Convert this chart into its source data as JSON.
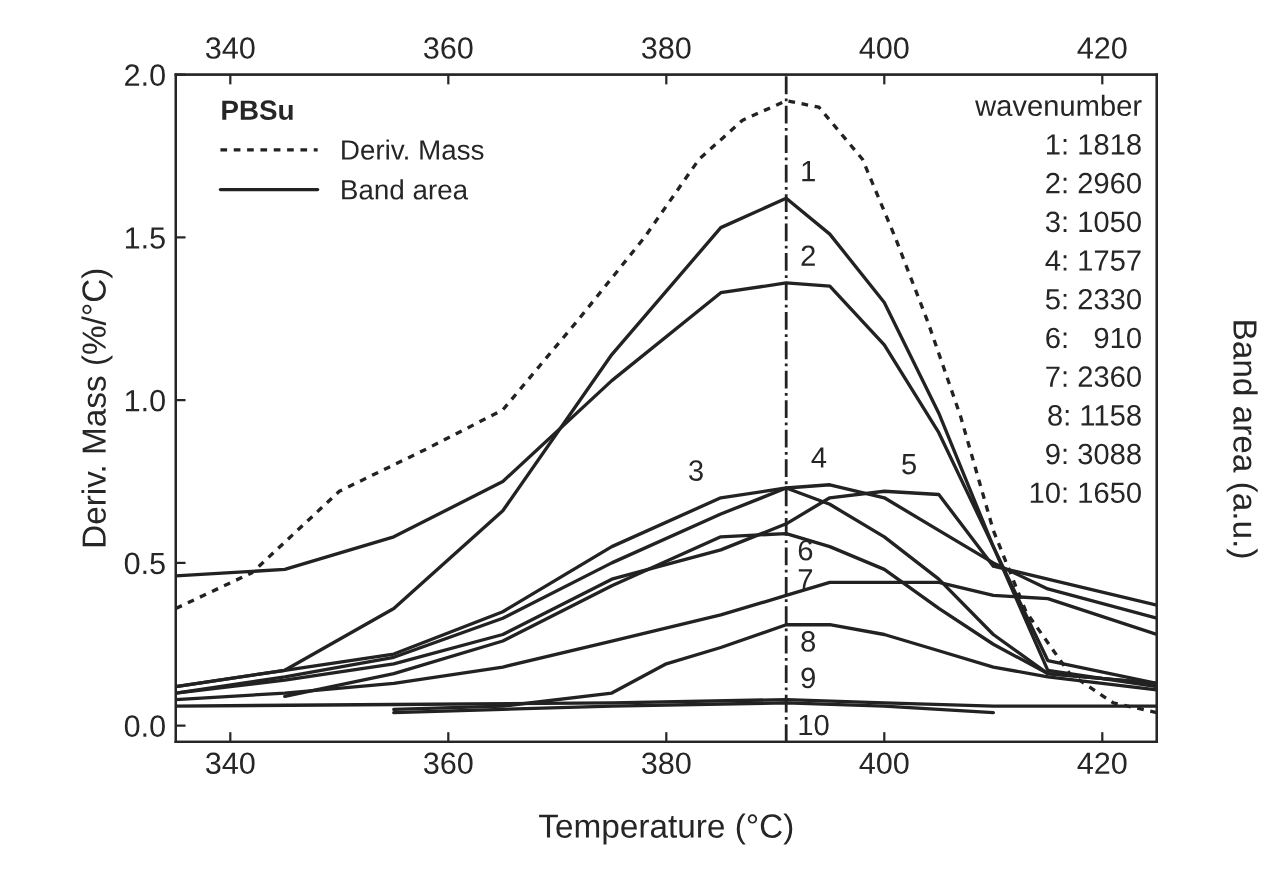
{
  "chart_data": {
    "type": "line",
    "xlabel": "Temperature (°C)",
    "ylabel": "Deriv. Mass (%/°C)",
    "y2label": "Band area (a.u.)",
    "legend_title": "PBSu",
    "xlim": [
      335,
      425
    ],
    "xticks": [
      340,
      360,
      380,
      400,
      420
    ],
    "x2lim": [
      335,
      425
    ],
    "x2ticks": [
      340,
      360,
      380,
      400,
      420
    ],
    "ylim": [
      -0.05,
      2.0
    ],
    "yticks": [
      {
        "value": 0,
        "label": "0.0"
      },
      0.5,
      {
        "value": 1,
        "label": "1.0"
      },
      1.5,
      {
        "value": 2,
        "label": "2.0"
      }
    ],
    "grid": false,
    "legend": "top left",
    "marker": "none",
    "ref_lines": [
      {
        "axis": "x",
        "value": 391,
        "line_style": "dashdot",
        "color": "#222222"
      }
    ],
    "series": [
      {
        "name": "Deriv. Mass",
        "color": "#222222",
        "line_style": "dotted",
        "x": [
          335,
          342,
          350,
          358,
          365,
          372,
          378,
          383,
          387,
          391,
          394,
          398,
          401,
          404,
          407,
          410,
          413,
          417,
          421,
          425
        ],
        "values": [
          0.36,
          0.47,
          0.72,
          0.85,
          0.97,
          1.25,
          1.5,
          1.74,
          1.86,
          1.92,
          1.9,
          1.74,
          1.5,
          1.24,
          0.95,
          0.6,
          0.35,
          0.16,
          0.07,
          0.04
        ]
      },
      {
        "color": "#222222",
        "line_style": "solid",
        "x": [
          335,
          345,
          355,
          365,
          375,
          385,
          391,
          395,
          400,
          405,
          410,
          415,
          425
        ],
        "values": [
          0.12,
          0.17,
          0.36,
          0.66,
          1.14,
          1.53,
          1.62,
          1.51,
          1.3,
          0.96,
          0.55,
          0.17,
          0.12
        ]
      },
      {
        "color": "#222222",
        "line_style": "solid",
        "x": [
          335,
          345,
          355,
          365,
          375,
          385,
          391,
          395,
          400,
          405,
          410,
          415,
          425
        ],
        "values": [
          0.46,
          0.48,
          0.58,
          0.75,
          1.06,
          1.33,
          1.36,
          1.35,
          1.17,
          0.9,
          0.55,
          0.2,
          0.13
        ]
      },
      {
        "color": "#222222",
        "line_style": "solid",
        "x": [
          335,
          345,
          355,
          365,
          375,
          385,
          391,
          395,
          400,
          405,
          410,
          415,
          425
        ],
        "values": [
          0.12,
          0.17,
          0.22,
          0.35,
          0.55,
          0.7,
          0.73,
          0.68,
          0.58,
          0.45,
          0.28,
          0.16,
          0.13
        ]
      },
      {
        "color": "#222222",
        "line_style": "solid",
        "x": [
          335,
          345,
          355,
          365,
          375,
          385,
          391,
          395,
          400,
          405,
          410,
          415,
          425
        ],
        "values": [
          0.1,
          0.15,
          0.21,
          0.33,
          0.5,
          0.65,
          0.73,
          0.74,
          0.7,
          0.6,
          0.5,
          0.42,
          0.33
        ]
      },
      {
        "color": "#222222",
        "line_style": "solid",
        "x": [
          335,
          345,
          355,
          365,
          375,
          385,
          391,
          395,
          400,
          405,
          410,
          415,
          425
        ],
        "values": [
          0.1,
          0.14,
          0.19,
          0.28,
          0.45,
          0.54,
          0.62,
          0.7,
          0.72,
          0.71,
          0.49,
          0.45,
          0.37
        ]
      },
      {
        "color": "#222222",
        "line_style": "solid",
        "x": [
          345,
          355,
          365,
          375,
          385,
          391,
          395,
          400,
          405,
          410,
          415,
          425
        ],
        "values": [
          0.09,
          0.16,
          0.26,
          0.43,
          0.58,
          0.59,
          0.55,
          0.48,
          0.36,
          0.25,
          0.16,
          0.13
        ]
      },
      {
        "color": "#222222",
        "line_style": "solid",
        "x": [
          335,
          345,
          355,
          365,
          375,
          385,
          391,
          395,
          405,
          410,
          415,
          425
        ],
        "values": [
          0.08,
          0.1,
          0.13,
          0.18,
          0.26,
          0.34,
          0.4,
          0.44,
          0.44,
          0.4,
          0.39,
          0.28
        ]
      },
      {
        "color": "#222222",
        "line_style": "solid",
        "x": [
          355,
          365,
          375,
          380,
          385,
          391,
          395,
          400,
          405,
          410,
          415,
          425
        ],
        "values": [
          0.05,
          0.06,
          0.1,
          0.19,
          0.24,
          0.31,
          0.31,
          0.28,
          0.23,
          0.18,
          0.15,
          0.11
        ]
      },
      {
        "color": "#222222",
        "line_style": "solid",
        "x": [
          335,
          355,
          375,
          391,
          400,
          410,
          425
        ],
        "values": [
          0.06,
          0.065,
          0.07,
          0.08,
          0.07,
          0.06,
          0.06
        ]
      },
      {
        "color": "#222222",
        "line_style": "solid",
        "x": [
          355,
          365,
          375,
          391,
          400,
          410
        ],
        "values": [
          0.04,
          0.05,
          0.06,
          0.07,
          0.06,
          0.04
        ]
      }
    ],
    "annotations": [
      {
        "text": "1",
        "x": 391,
        "y": 1.62
      },
      {
        "text": "2",
        "x": 391,
        "y": 1.36
      },
      {
        "text": "3",
        "x": 385,
        "y": 0.7
      },
      {
        "text": "4",
        "x": 395,
        "y": 0.74
      },
      {
        "text": "5",
        "x": 400,
        "y": 0.72
      },
      {
        "text": "6",
        "x": 391,
        "y": 0.59
      },
      {
        "text": "7",
        "x": 391,
        "y": 0.4
      },
      {
        "text": "8",
        "x": 391,
        "y": 0.31
      },
      {
        "text": "9",
        "x": 391,
        "y": 0.08
      },
      {
        "text": "10",
        "x": 391,
        "y": 0.07
      },
      "Band area",
      "wavenumber",
      "1: 1818",
      "2: 2960",
      "3: 1050",
      "4: 1757",
      "5: 2330",
      "6:   910",
      "7: 2360",
      "8: 1158",
      "9: 3088",
      "10: 1650"
    ]
  }
}
